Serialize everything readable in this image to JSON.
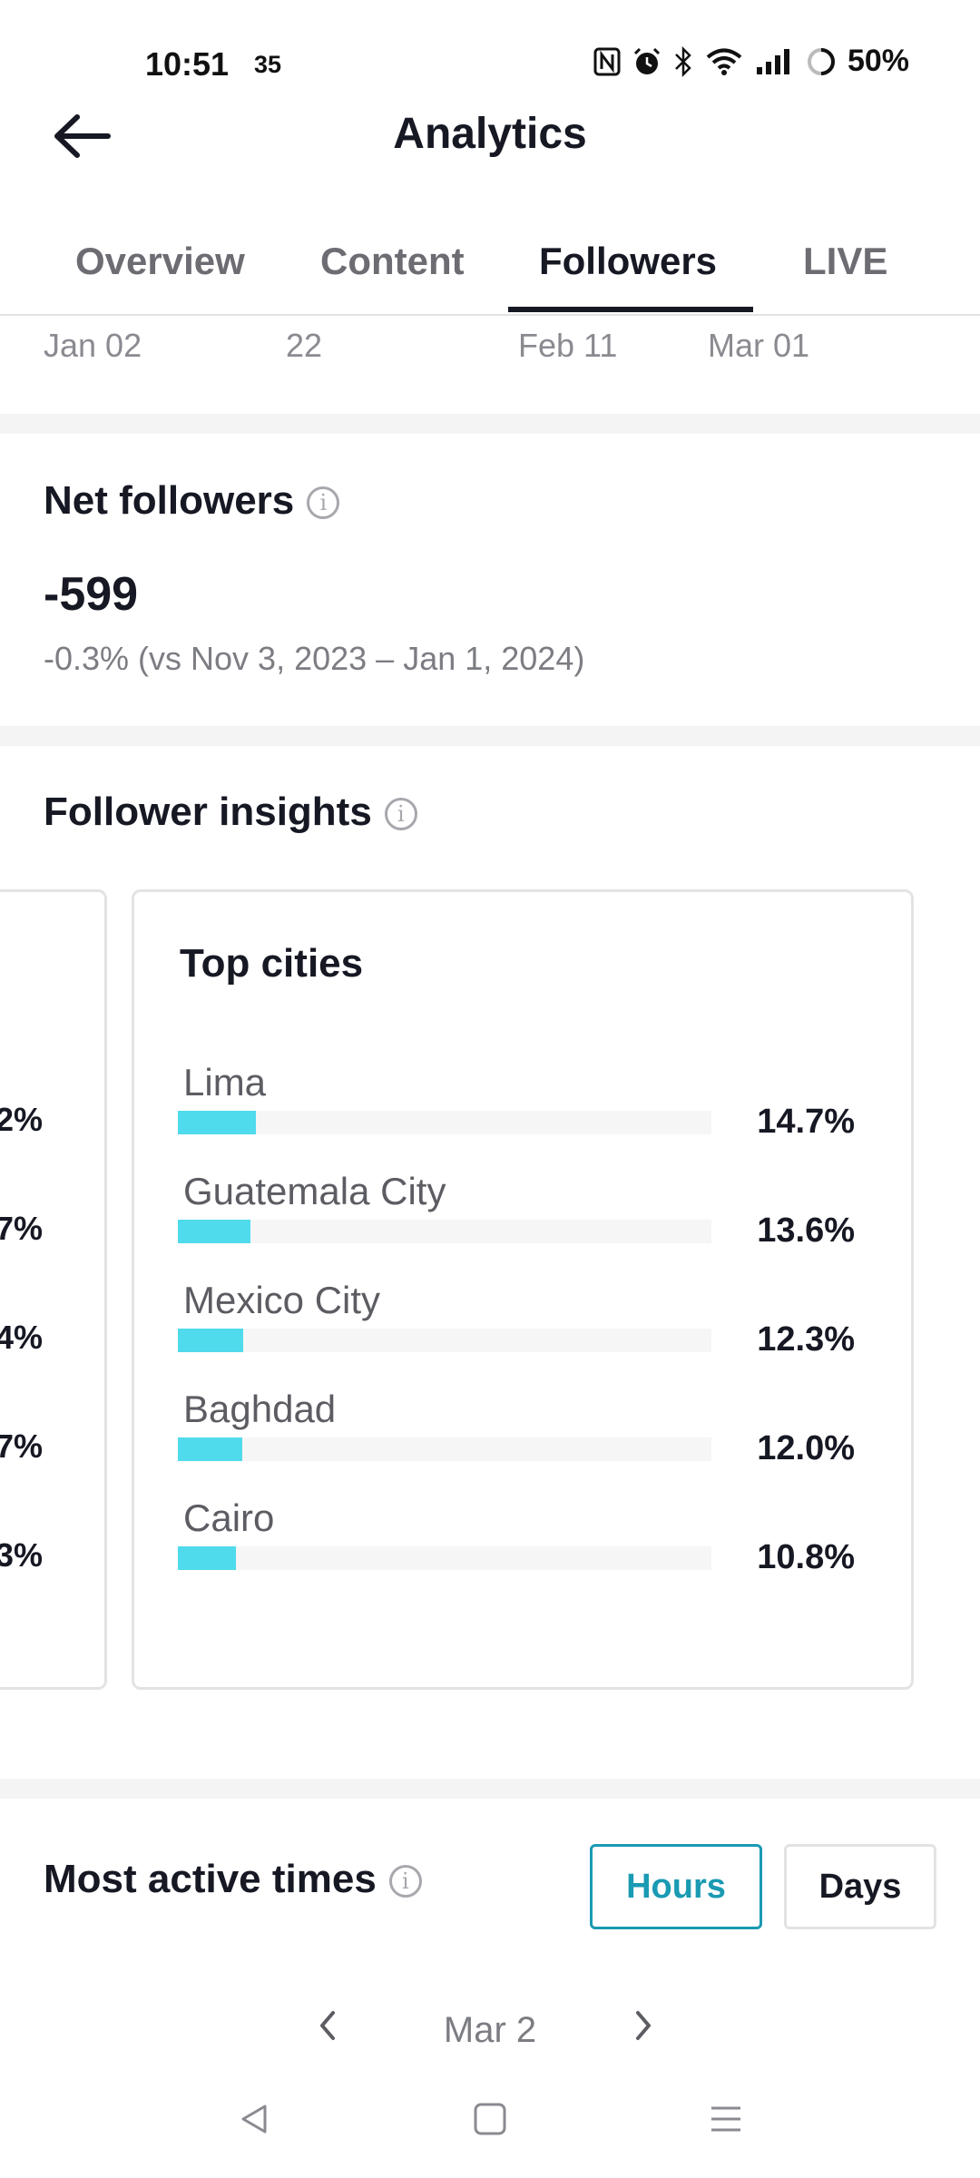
{
  "status_bar": {
    "time": "10:51",
    "extra": "35",
    "battery": "50%",
    "icons": [
      "nfc-icon",
      "alarm-icon",
      "bluetooth-icon",
      "wifi-icon",
      "signal-icon",
      "battery-icon"
    ]
  },
  "header": {
    "title": "Analytics",
    "back_icon": "back-arrow-icon"
  },
  "tabs": [
    {
      "label": "Overview",
      "active": false
    },
    {
      "label": "Content",
      "active": false
    },
    {
      "label": "Followers",
      "active": true
    },
    {
      "label": "LIVE",
      "active": false
    }
  ],
  "chart_axis": {
    "x_labels": [
      "Jan 02",
      "22",
      "Feb 11",
      "Mar 01"
    ]
  },
  "net_followers": {
    "title": "Net followers",
    "value": "-599",
    "comparison": "-0.3% (vs Nov 3, 2023 – Jan 1, 2024)"
  },
  "follower_insights": {
    "title": "Follower insights",
    "previous_card_values": [
      "2%",
      ".7%",
      "4%",
      ".7%",
      "3%"
    ],
    "top_cities": {
      "title": "Top cities",
      "items": [
        {
          "name": "Lima",
          "percent": "14.7%",
          "value": 14.7
        },
        {
          "name": "Guatemala City",
          "percent": "13.6%",
          "value": 13.6
        },
        {
          "name": "Mexico City",
          "percent": "12.3%",
          "value": 12.3
        },
        {
          "name": "Baghdad",
          "percent": "12.0%",
          "value": 12.0
        },
        {
          "name": "Cairo",
          "percent": "10.8%",
          "value": 10.8
        }
      ]
    }
  },
  "most_active": {
    "title": "Most active times",
    "toggle": {
      "hours": "Hours",
      "days": "Days",
      "selected": "Hours"
    },
    "date": "Mar 2"
  },
  "colors": {
    "accent": "#1a9ab3",
    "bar": "#4fdbec",
    "text": "#161823"
  },
  "nav_bar": [
    "nav-back-icon",
    "nav-home-icon",
    "nav-menu-icon"
  ]
}
